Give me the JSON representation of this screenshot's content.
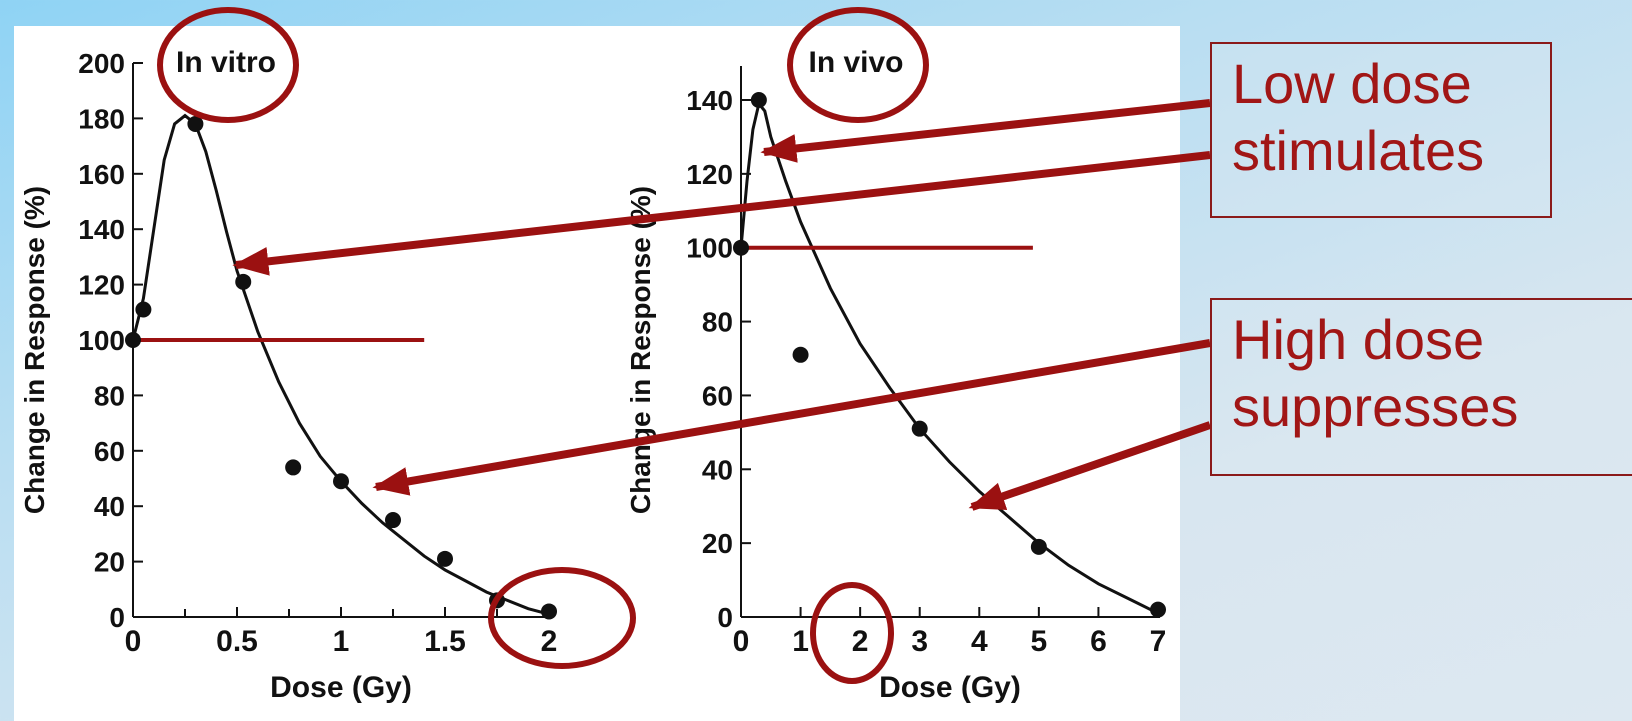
{
  "colors": {
    "accent": "#9b1111",
    "ink": "#111111",
    "panel": "#ffffff"
  },
  "callouts": {
    "low": {
      "line1": "Low dose",
      "line2": "stimulates"
    },
    "high": {
      "line1": "High dose",
      "line2": "suppresses"
    }
  },
  "chart_data": [
    {
      "type": "scatter",
      "title": "In vitro",
      "xlabel": "Dose (Gy)",
      "ylabel": "Change in Response (%)",
      "xlim": [
        0,
        2
      ],
      "ylim": [
        0,
        200
      ],
      "xticks": [
        "0",
        "0.5",
        "1",
        "1.5",
        "2"
      ],
      "yticks": [
        "0",
        "20",
        "40",
        "60",
        "80",
        "100",
        "120",
        "140",
        "160",
        "180",
        "200"
      ],
      "series": [
        {
          "values": [
            [
              0,
              100
            ],
            [
              0.05,
              111
            ],
            [
              0.3,
              178
            ],
            [
              0.53,
              121
            ],
            [
              0.77,
              54
            ],
            [
              1.0,
              49
            ],
            [
              1.25,
              35
            ],
            [
              1.5,
              21
            ],
            [
              1.75,
              6
            ],
            [
              2.0,
              2
            ]
          ]
        }
      ],
      "fit_curve": [
        [
          0,
          100
        ],
        [
          0.05,
          115
        ],
        [
          0.1,
          140
        ],
        [
          0.15,
          165
        ],
        [
          0.2,
          178
        ],
        [
          0.25,
          181
        ],
        [
          0.3,
          178
        ],
        [
          0.35,
          168
        ],
        [
          0.4,
          154
        ],
        [
          0.45,
          139
        ],
        [
          0.5,
          125
        ],
        [
          0.6,
          103
        ],
        [
          0.7,
          85
        ],
        [
          0.8,
          70
        ],
        [
          0.9,
          58
        ],
        [
          1.0,
          49
        ],
        [
          1.1,
          41
        ],
        [
          1.2,
          34
        ],
        [
          1.3,
          28
        ],
        [
          1.4,
          22
        ],
        [
          1.5,
          17
        ],
        [
          1.6,
          13
        ],
        [
          1.7,
          9
        ],
        [
          1.8,
          6
        ],
        [
          1.9,
          3
        ],
        [
          2.0,
          1
        ]
      ],
      "reference_line": {
        "y": 100,
        "x_end": 1.4
      }
    },
    {
      "type": "scatter",
      "title": "In vivo",
      "xlabel": "Dose (Gy)",
      "ylabel": "Change in Response (%)",
      "xlim": [
        0,
        7
      ],
      "ylim": [
        0,
        140
      ],
      "xticks": [
        "0",
        "1",
        "2",
        "3",
        "4",
        "5",
        "6",
        "7"
      ],
      "yticks": [
        "0",
        "20",
        "40",
        "60",
        "80",
        "100",
        "120",
        "140"
      ],
      "series": [
        {
          "values": [
            [
              0,
              100
            ],
            [
              0.3,
              140
            ],
            [
              1,
              71
            ],
            [
              3,
              51
            ],
            [
              5,
              19
            ],
            [
              7,
              2
            ]
          ]
        }
      ],
      "fit_curve": [
        [
          0,
          100
        ],
        [
          0.1,
          118
        ],
        [
          0.2,
          132
        ],
        [
          0.3,
          139
        ],
        [
          0.4,
          137
        ],
        [
          0.5,
          130
        ],
        [
          0.75,
          118
        ],
        [
          1.0,
          107
        ],
        [
          1.5,
          89
        ],
        [
          2.0,
          74
        ],
        [
          2.5,
          62
        ],
        [
          3.0,
          51
        ],
        [
          3.5,
          42
        ],
        [
          4.0,
          34
        ],
        [
          4.5,
          27
        ],
        [
          5.0,
          20
        ],
        [
          5.5,
          14
        ],
        [
          6.0,
          9
        ],
        [
          6.5,
          5
        ],
        [
          7.0,
          1
        ]
      ],
      "reference_line": {
        "y": 100,
        "x_end": 4.9
      }
    }
  ]
}
